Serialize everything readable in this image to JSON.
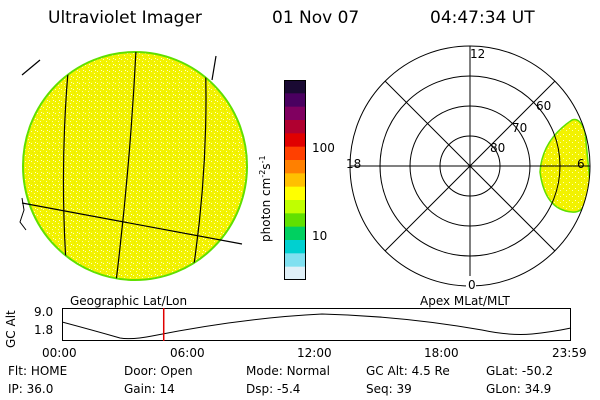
{
  "header": {
    "instrument": "Ultraviolet Imager",
    "date": "01 Nov 07",
    "time": "04:47:34 UT"
  },
  "left_panel": {
    "label": "Geographic Lat/Lon"
  },
  "right_panel": {
    "label": "Apex MLat/MLT",
    "mlt_labels": [
      "12",
      "18",
      "6",
      "0"
    ],
    "lat_labels": [
      "60",
      "70",
      "80"
    ]
  },
  "colorbar": {
    "unit_label": "photon cm",
    "unit_sup1": "-2",
    "unit_mid": "s",
    "unit_sup2": "-1",
    "ticks": [
      "100",
      "10"
    ],
    "colors": [
      "#1a0a33",
      "#4a0060",
      "#800060",
      "#b00030",
      "#e00000",
      "#ff4000",
      "#ff8000",
      "#ffc000",
      "#ffff00",
      "#c0ff00",
      "#60e000",
      "#00d060",
      "#00d0d0",
      "#80e0f0",
      "#e0f0f8"
    ]
  },
  "timeline": {
    "ylabel": "GC Alt",
    "y_top": "9.0",
    "y_bottom": "1.8",
    "x_ticks": [
      "00:00",
      "06:00",
      "12:00",
      "18:00",
      "23:59"
    ],
    "marker_time": "04:47:34"
  },
  "status": {
    "row1": [
      {
        "label": "Flt:",
        "value": "HOME"
      },
      {
        "label": "Door:",
        "value": "Open"
      },
      {
        "label": "Mode:",
        "value": "Normal"
      },
      {
        "label": "GC Alt:",
        "value": "4.5 Re"
      },
      {
        "label": "GLat:",
        "value": "-50.2"
      }
    ],
    "row2": [
      {
        "label": "IP:",
        "value": "36.0"
      },
      {
        "label": "Gain:",
        "value": "14"
      },
      {
        "label": "Dsp:",
        "value": "-5.4"
      },
      {
        "label": "Seq:",
        "value": "39"
      },
      {
        "label": "GLon:",
        "value": "34.9"
      }
    ]
  },
  "colors": {
    "emission": "#f4f400",
    "emission_edge": "#60e000",
    "marker": "#e00000"
  }
}
